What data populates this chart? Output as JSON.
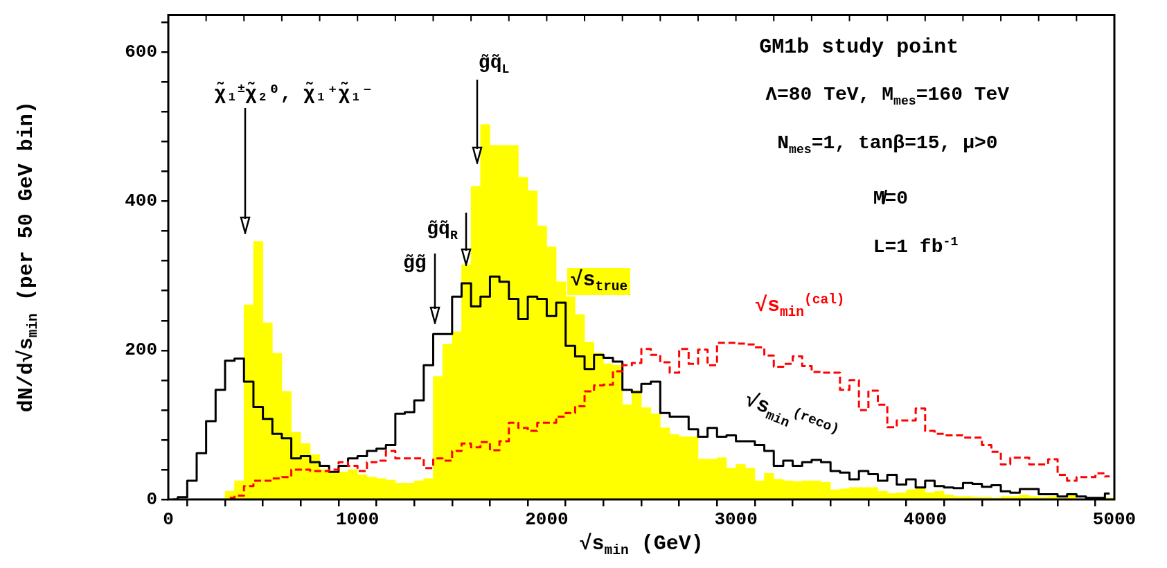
{
  "chart_data": {
    "type": "histogram",
    "xlabel": "√s$_{min}$ (GeV)",
    "ylabel": "dN/d√s$_{min}$ (per 50 GeV bin)",
    "bins": [
      0,
      50,
      100,
      150,
      200,
      250,
      300,
      350,
      400,
      450,
      500,
      550,
      600,
      650,
      700,
      750,
      800,
      850,
      900,
      950,
      1000,
      1050,
      1100,
      1150,
      1200,
      1250,
      1300,
      1350,
      1400,
      1450,
      1500,
      1550,
      1600,
      1650,
      1700,
      1750,
      1800,
      1850,
      1900,
      1950,
      2000,
      2050,
      2100,
      2150,
      2200,
      2250,
      2300,
      2350,
      2400,
      2450,
      2500,
      2550,
      2600,
      2650,
      2700,
      2750,
      2800,
      2850,
      2900,
      2950,
      3000,
      3050,
      3100,
      3150,
      3200,
      3250,
      3300,
      3350,
      3400,
      3450,
      3500,
      3550,
      3600,
      3650,
      3700,
      3750,
      3800,
      3850,
      3900,
      3950,
      4000,
      4050,
      4100,
      4150,
      4200,
      4250,
      4300,
      4350,
      4400,
      4450,
      4500,
      4550,
      4600,
      4650,
      4700,
      4750,
      4800,
      4850,
      4900,
      4950,
      5000
    ],
    "series": [
      {
        "name": "√s$_{true}$",
        "color": "#ffff00",
        "values": [
          0,
          0,
          0,
          0,
          0,
          0,
          11,
          25,
          261,
          346,
          237,
          196,
          145,
          90,
          75,
          60,
          40,
          37,
          37,
          40,
          33,
          30,
          28,
          26,
          22,
          22,
          25,
          28,
          165,
          208,
          225,
          315,
          420,
          503,
          475,
          475,
          475,
          432,
          414,
          367,
          339,
          292,
          272,
          248,
          211,
          196,
          182,
          180,
          127,
          146,
          123,
          115,
          96,
          87,
          84,
          84,
          54,
          54,
          56,
          42,
          47,
          42,
          25,
          35,
          27,
          25,
          24,
          25,
          25,
          23,
          13,
          14,
          16,
          16,
          16,
          11,
          8,
          9,
          13,
          15,
          9,
          11,
          6,
          4,
          4,
          3,
          3,
          2,
          4,
          4,
          6,
          4,
          3,
          4,
          2,
          8,
          null,
          null,
          null,
          2
        ]
      },
      {
        "name": "√s$_{min}$$^{(reco)}$",
        "type": "step",
        "color": "#000000",
        "line_style": "solid",
        "x": [
          25,
          75,
          125,
          175,
          225,
          275,
          325,
          375,
          425,
          475,
          525,
          575,
          625,
          675,
          725,
          775,
          825,
          875,
          925,
          975,
          1025,
          1075,
          1125,
          1175,
          1225,
          1275,
          1325,
          1375,
          1425,
          1475,
          1525,
          1575,
          1625,
          1675,
          1725,
          1775,
          1825,
          1875,
          1925,
          1975,
          2025,
          2075,
          2125,
          2175,
          2225,
          2275,
          2325,
          2375,
          2425,
          2475,
          2525,
          2575,
          2625,
          2675,
          2725,
          2775,
          2825,
          2875,
          2925,
          2975,
          3025,
          3075,
          3125,
          3175,
          3225,
          3275,
          3325,
          3375,
          3425,
          3475,
          3525,
          3575,
          3625,
          3675,
          3725,
          3775,
          3825,
          3875,
          3925,
          3975,
          4025,
          4075,
          4125,
          4175,
          4225,
          4275,
          4325,
          4375,
          4425,
          4475,
          4525,
          4575,
          4625,
          4675,
          4725,
          4775,
          4825,
          4875,
          4925,
          4975
        ],
        "values": [
          0,
          3,
          25,
          62,
          105,
          147,
          186,
          189,
          158,
          124,
          108,
          88,
          82,
          55,
          58,
          50,
          45,
          37,
          45,
          55,
          58,
          65,
          68,
          73,
          115,
          117,
          133,
          180,
          222,
          222,
          272,
          290,
          259,
          272,
          299,
          292,
          269,
          242,
          272,
          269,
          246,
          264,
          206,
          192,
          175,
          194,
          190,
          185,
          147,
          144,
          155,
          158,
          116,
          111,
          111,
          94,
          84,
          96,
          84,
          86,
          78,
          78,
          73,
          65,
          45,
          52,
          45,
          50,
          53,
          50,
          38,
          36,
          27,
          38,
          34,
          25,
          33,
          20,
          27,
          16,
          25,
          18,
          16,
          15,
          22,
          21,
          17,
          19,
          11,
          9,
          14,
          14,
          7,
          7,
          4,
          7,
          4,
          2,
          2,
          8
        ]
      },
      {
        "name": "√s$_{min}$$^{(cal)}$",
        "type": "step",
        "color": "#ff0000",
        "line_style": "dashed",
        "x": [
          325,
          375,
          425,
          475,
          525,
          575,
          625,
          675,
          725,
          775,
          825,
          875,
          925,
          975,
          1025,
          1075,
          1125,
          1175,
          1225,
          1275,
          1325,
          1375,
          1425,
          1475,
          1525,
          1575,
          1625,
          1675,
          1725,
          1775,
          1825,
          1875,
          1925,
          1975,
          2025,
          2075,
          2125,
          2175,
          2225,
          2275,
          2325,
          2375,
          2425,
          2475,
          2525,
          2575,
          2625,
          2675,
          2725,
          2775,
          2825,
          2875,
          2925,
          2975,
          3025,
          3075,
          3125,
          3175,
          3225,
          3275,
          3325,
          3375,
          3425,
          3475,
          3525,
          3575,
          3625,
          3675,
          3725,
          3775,
          3825,
          3875,
          3925,
          3975,
          4025,
          4075,
          4125,
          4175,
          4225,
          4275,
          4325,
          4375,
          4425,
          4475,
          4525,
          4575,
          4625,
          4675,
          4725,
          4775,
          4825,
          4875,
          4925,
          4975
        ],
        "values": [
          2,
          5,
          18,
          25,
          25,
          28,
          30,
          40,
          40,
          38,
          38,
          40,
          50,
          45,
          38,
          50,
          52,
          65,
          55,
          55,
          55,
          42,
          55,
          52,
          65,
          75,
          70,
          77,
          66,
          78,
          103,
          96,
          92,
          103,
          103,
          111,
          116,
          125,
          145,
          153,
          154,
          172,
          180,
          183,
          202,
          194,
          184,
          170,
          202,
          182,
          201,
          180,
          210,
          210,
          209,
          208,
          204,
          193,
          178,
          182,
          192,
          179,
          171,
          170,
          170,
          147,
          160,
          120,
          146,
          127,
          97,
          106,
          106,
          122,
          92,
          88,
          86,
          86,
          83,
          83,
          73,
          64,
          47,
          56,
          56,
          47,
          47,
          54,
          33,
          25,
          30,
          30,
          35,
          31
        ]
      }
    ],
    "xlim": [
      0,
      5000
    ],
    "xticks": [
      0,
      {
        "value": 200,
        "label": null
      },
      {
        "value": 400,
        "label": null
      },
      {
        "value": 600,
        "label": null
      },
      {
        "value": 800,
        "label": null
      },
      1000,
      {
        "value": 1200,
        "label": null
      },
      {
        "value": 1400,
        "label": null
      },
      {
        "value": 1600,
        "label": null
      },
      {
        "value": 1800,
        "label": null
      },
      2000,
      {
        "value": 2200,
        "label": null
      },
      {
        "value": 2400,
        "label": null
      },
      {
        "value": 2600,
        "label": null
      },
      {
        "value": 2800,
        "label": null
      },
      3000,
      {
        "value": 3200,
        "label": null
      },
      {
        "value": 3400,
        "label": null
      },
      {
        "value": 3600,
        "label": null
      },
      {
        "value": 3800,
        "label": null
      },
      4000,
      {
        "value": 4200,
        "label": null
      },
      {
        "value": 4400,
        "label": null
      },
      {
        "value": 4600,
        "label": null
      },
      {
        "value": 4800,
        "label": null
      },
      5000
    ],
    "ylim": [
      0,
      650
    ],
    "yticks": [
      0,
      {
        "value": 40,
        "label": null
      },
      {
        "value": 80,
        "label": null
      },
      {
        "value": 120,
        "label": null
      },
      {
        "value": 160,
        "label": null
      },
      200,
      {
        "value": 240,
        "label": null
      },
      {
        "value": 280,
        "label": null
      },
      {
        "value": 320,
        "label": null
      },
      {
        "value": 360,
        "label": null
      },
      400,
      {
        "value": 440,
        "label": null
      },
      {
        "value": 480,
        "label": null
      },
      {
        "value": 520,
        "label": null
      },
      {
        "value": 560,
        "label": null
      },
      600,
      {
        "value": 640,
        "label": null
      }
    ],
    "annotations": [
      "GM1b study point",
      "Λ=80 TeV, M$_{mes}$=160 TeV",
      "N$_{mes}$=1, tanβ=15, μ>0",
      "M̸=0",
      "L=1 fb$^{-1}$",
      "χ̃₁$^{±}$χ̃₂⁰, χ̃₁⁺χ̃₁⁻",
      "g̃g̃",
      {
        "text": "g̃q̃$_{R}$",
        "x": 1575,
        "y": 315
      },
      "g̃q̃$_{L}$"
    ]
  }
}
